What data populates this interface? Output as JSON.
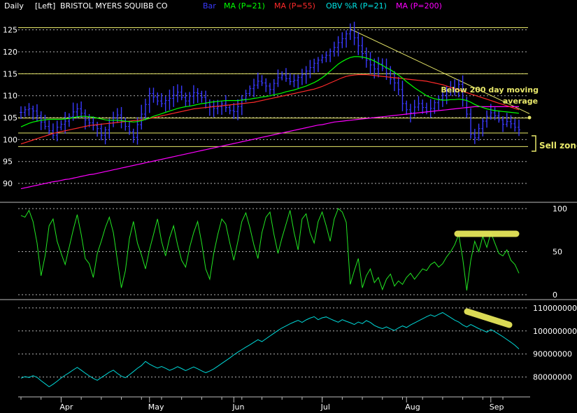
{
  "header": {
    "period": "Daily",
    "scale": "[Left]",
    "company": "BRISTOL MYERS SQUIBB CO",
    "legend": [
      {
        "label": "Bar",
        "color": "#3a3aff"
      },
      {
        "label": "MA (P=21)",
        "color": "#00ff00"
      },
      {
        "label": "MA (P=55)",
        "color": "#ff2a2a"
      },
      {
        "label": "OBV  %R (P=21)",
        "color": "#00e5e5"
      },
      {
        "label": "MA (P=200)",
        "color": "#ff00ff"
      }
    ]
  },
  "annotations": {
    "ma200_note_line1": "Below 200 day moving",
    "ma200_note_line2": "average",
    "sell_zone": "Sell zone"
  },
  "colors": {
    "bars": "#3a3aff",
    "ma21": "#00ff00",
    "ma55": "#ff2a2a",
    "ma200": "#ff00ff",
    "pctr": "#22e622",
    "obv": "#00d8d8",
    "trendline": "#e8e86a",
    "highlight": "#e6e65a",
    "grid": "#ffffff",
    "text": "#ffffff"
  },
  "chart_data": [
    {
      "type": "bar",
      "name": "price",
      "ylim": [
        86.5,
        127.5
      ],
      "y_ticks": [
        90,
        95,
        100,
        105,
        110,
        115,
        120,
        125
      ],
      "x_labels": [
        "Apr",
        "May",
        "Jun",
        "Jul",
        "Aug",
        "Sep"
      ],
      "x_label_index": [
        10,
        32,
        53,
        75,
        96,
        117
      ],
      "n": 125,
      "close": [
        106.2,
        106.8,
        107.0,
        106.5,
        105.4,
        104.0,
        103.0,
        102.0,
        101.0,
        102.8,
        103.5,
        104.2,
        105.2,
        106.3,
        107.0,
        106.0,
        104.5,
        103.8,
        103.2,
        102.5,
        101.0,
        102.2,
        103.8,
        105.0,
        105.6,
        104.2,
        103.0,
        101.8,
        100.5,
        103.4,
        105.8,
        108.0,
        110.5,
        109.7,
        108.8,
        108.2,
        108.9,
        109.4,
        110.1,
        110.8,
        109.6,
        108.8,
        109.9,
        110.7,
        110.5,
        109.6,
        108.4,
        107.6,
        107.1,
        107.5,
        108.1,
        107.3,
        106.6,
        106.4,
        107.5,
        109.2,
        110.5,
        111.6,
        112.4,
        113.3,
        112.9,
        112.2,
        111.4,
        112.8,
        114.1,
        114.7,
        113.9,
        113.2,
        113.5,
        114.2,
        114.8,
        115.6,
        116.4,
        117.4,
        118.1,
        118.7,
        119.2,
        120.1,
        121.0,
        122.1,
        123.0,
        124.1,
        124.8,
        123.2,
        121.4,
        119.6,
        118.1,
        117.0,
        116.1,
        117.2,
        116.3,
        115.1,
        113.8,
        112.9,
        111.4,
        108.2,
        106.8,
        106.1,
        107.4,
        108.2,
        107.3,
        106.4,
        107.1,
        108.4,
        109.2,
        110.1,
        111.2,
        111.8,
        110.9,
        112.6,
        109.0,
        105.8,
        101.2,
        100.4,
        102.5,
        104.2,
        105.3,
        106.1,
        105.4,
        104.5,
        103.5,
        104.1,
        103.6,
        102.8,
        102.2
      ],
      "ma21": [
        102.9,
        103.3,
        103.7,
        104.0,
        104.2,
        104.4,
        104.5,
        104.6,
        104.6,
        104.6,
        104.6,
        104.7,
        104.8,
        105.0,
        105.2,
        105.3,
        105.3,
        105.2,
        105.1,
        104.9,
        104.7,
        104.5,
        104.4,
        104.4,
        104.4,
        104.3,
        104.2,
        104.1,
        104.0,
        104.1,
        104.3,
        104.6,
        104.9,
        105.3,
        105.6,
        105.9,
        106.2,
        106.5,
        106.8,
        107.1,
        107.3,
        107.5,
        107.6,
        107.8,
        108.0,
        108.2,
        108.3,
        108.5,
        108.6,
        108.7,
        108.8,
        108.9,
        108.9,
        108.9,
        108.9,
        109.0,
        109.1,
        109.2,
        109.4,
        109.5,
        109.7,
        109.8,
        110.0,
        110.2,
        110.4,
        110.6,
        110.9,
        111.1,
        111.3,
        111.6,
        111.9,
        112.2,
        112.6,
        113.0,
        113.5,
        114.1,
        114.8,
        115.6,
        116.4,
        117.2,
        117.8,
        118.3,
        118.7,
        118.9,
        118.9,
        118.8,
        118.6,
        118.3,
        117.9,
        117.4,
        116.9,
        116.4,
        115.9,
        115.3,
        114.7,
        114.0,
        113.2,
        112.5,
        111.8,
        111.2,
        110.6,
        110.0,
        109.6,
        109.3,
        109.1,
        109.0,
        109.0,
        109.1,
        109.1,
        109.2,
        109.1,
        108.9,
        108.5,
        108.0,
        107.6,
        107.3,
        107.0,
        106.8,
        106.6,
        106.5,
        106.4,
        106.3,
        106.2,
        106.1,
        106.0
      ],
      "ma55": [
        99.0,
        99.3,
        99.6,
        99.9,
        100.2,
        100.5,
        100.8,
        101.1,
        101.4,
        101.6,
        101.8,
        102.0,
        102.2,
        102.4,
        102.6,
        102.8,
        103.0,
        103.2,
        103.3,
        103.4,
        103.5,
        103.6,
        103.7,
        103.8,
        103.9,
        104.0,
        104.1,
        104.2,
        104.3,
        104.4,
        104.5,
        104.6,
        104.8,
        105.0,
        105.2,
        105.4,
        105.6,
        105.8,
        106.0,
        106.2,
        106.4,
        106.6,
        106.8,
        107.0,
        107.1,
        107.2,
        107.3,
        107.4,
        107.5,
        107.6,
        107.7,
        107.8,
        107.9,
        108.0,
        108.1,
        108.2,
        108.3,
        108.4,
        108.5,
        108.7,
        108.9,
        109.1,
        109.3,
        109.5,
        109.7,
        109.9,
        110.1,
        110.3,
        110.5,
        110.7,
        110.9,
        111.1,
        111.3,
        111.5,
        111.8,
        112.1,
        112.5,
        112.9,
        113.3,
        113.7,
        114.1,
        114.4,
        114.6,
        114.7,
        114.8,
        114.8,
        114.8,
        114.7,
        114.6,
        114.5,
        114.4,
        114.3,
        114.2,
        114.1,
        114.0,
        113.9,
        113.8,
        113.7,
        113.6,
        113.5,
        113.4,
        113.3,
        113.1,
        112.9,
        112.7,
        112.5,
        112.2,
        111.9,
        111.6,
        111.3,
        111.0,
        110.7,
        110.4,
        110.1,
        109.8,
        109.5,
        109.2,
        108.9,
        108.6,
        108.3,
        108.0,
        107.7,
        107.4,
        107.1,
        106.8
      ],
      "ma200": [
        88.8,
        89.0,
        89.2,
        89.4,
        89.6,
        89.8,
        90.0,
        90.2,
        90.4,
        90.5,
        90.7,
        90.9,
        91.0,
        91.2,
        91.4,
        91.6,
        91.8,
        92.0,
        92.1,
        92.3,
        92.5,
        92.7,
        92.9,
        93.1,
        93.3,
        93.5,
        93.7,
        93.9,
        94.1,
        94.3,
        94.5,
        94.7,
        94.9,
        95.1,
        95.3,
        95.5,
        95.7,
        95.9,
        96.1,
        96.3,
        96.5,
        96.7,
        96.9,
        97.1,
        97.3,
        97.5,
        97.7,
        97.9,
        98.1,
        98.3,
        98.5,
        98.7,
        98.9,
        99.1,
        99.3,
        99.5,
        99.7,
        99.9,
        100.1,
        100.3,
        100.5,
        100.7,
        100.9,
        101.1,
        101.3,
        101.5,
        101.7,
        101.9,
        102.1,
        102.3,
        102.5,
        102.7,
        102.9,
        103.1,
        103.3,
        103.4,
        103.6,
        103.8,
        104.0,
        104.1,
        104.2,
        104.3,
        104.4,
        104.5,
        104.6,
        104.7,
        104.8,
        104.9,
        105.0,
        105.1,
        105.2,
        105.3,
        105.4,
        105.5,
        105.6,
        105.7,
        105.8,
        105.9,
        106.0,
        106.1,
        106.2,
        106.3,
        106.4,
        106.5,
        106.6,
        106.7,
        106.8,
        106.9,
        107.0,
        107.1,
        107.2,
        107.3,
        107.4,
        107.5,
        107.5,
        107.5,
        107.5,
        107.5,
        107.5,
        107.5,
        107.5,
        107.5,
        107.5,
        107.5,
        107.5
      ],
      "hlines": [
        125.5,
        115.0,
        104.9,
        101.5,
        98.4
      ],
      "trendline": {
        "from": [
          82,
          125.2
        ],
        "to": [
          124,
          105.9
        ]
      }
    },
    {
      "type": "line",
      "name": "%R (P=21)",
      "ylim": [
        0,
        100
      ],
      "y_ticks": [
        0,
        50,
        100
      ],
      "values": [
        92,
        90,
        98,
        85,
        60,
        22,
        45,
        80,
        88,
        62,
        48,
        35,
        55,
        75,
        93,
        70,
        42,
        36,
        20,
        48,
        62,
        78,
        90,
        72,
        40,
        8,
        28,
        65,
        85,
        60,
        46,
        30,
        52,
        70,
        88,
        62,
        45,
        66,
        80,
        58,
        40,
        32,
        55,
        72,
        85,
        60,
        30,
        18,
        48,
        70,
        88,
        82,
        60,
        40,
        62,
        85,
        95,
        78,
        58,
        42,
        72,
        90,
        96,
        70,
        48,
        66,
        82,
        98,
        72,
        52,
        88,
        94,
        72,
        60,
        85,
        96,
        80,
        62,
        88,
        100,
        96,
        84,
        12,
        28,
        42,
        8,
        22,
        30,
        14,
        20,
        6,
        18,
        24,
        10,
        16,
        12,
        20,
        25,
        18,
        24,
        30,
        28,
        35,
        38,
        32,
        36,
        44,
        50,
        58,
        70,
        42,
        5,
        40,
        62,
        50,
        68,
        55,
        72,
        60,
        48,
        45,
        52,
        40,
        35,
        25
      ]
    },
    {
      "type": "line",
      "name": "OBV",
      "ylim": [
        72000000,
        113000000
      ],
      "y_ticks": [
        80000000,
        90000000,
        100000000,
        110000000
      ],
      "y_tick_labels": [
        "80000000",
        "90000000",
        "100000000",
        "110000000"
      ],
      "values": [
        79.5,
        80.2,
        79.8,
        80.6,
        79.9,
        78.4,
        77.1,
        75.8,
        76.9,
        78.2,
        79.6,
        80.8,
        81.9,
        83.1,
        84.2,
        83.0,
        81.7,
        80.5,
        79.4,
        78.6,
        79.8,
        80.9,
        82.1,
        83.0,
        81.6,
        80.4,
        79.7,
        81.0,
        82.4,
        83.8,
        85.0,
        86.8,
        85.6,
        84.7,
        83.9,
        84.6,
        83.8,
        82.9,
        83.6,
        84.5,
        83.7,
        82.8,
        83.6,
        84.4,
        83.6,
        82.7,
        81.9,
        82.6,
        83.5,
        84.7,
        85.9,
        87.1,
        88.3,
        89.6,
        90.8,
        91.9,
        93.0,
        94.0,
        95.1,
        96.2,
        95.4,
        96.6,
        97.8,
        99.0,
        100.2,
        101.3,
        102.2,
        103.1,
        103.9,
        104.6,
        103.7,
        104.8,
        105.6,
        106.2,
        104.9,
        105.7,
        106.1,
        105.3,
        104.5,
        103.8,
        104.9,
        104.2,
        103.6,
        102.8,
        103.9,
        103.2,
        104.5,
        103.7,
        102.4,
        101.6,
        101.0,
        101.8,
        100.9,
        100.2,
        101.3,
        102.2,
        101.5,
        102.6,
        103.5,
        104.4,
        105.3,
        106.2,
        107.0,
        106.3,
        107.2,
        108.0,
        106.9,
        105.8,
        104.7,
        103.9,
        102.6,
        101.7,
        102.8,
        101.9,
        101.0,
        100.3,
        99.5,
        100.6,
        99.7,
        98.6,
        97.5,
        96.3,
        95.1,
        93.8,
        92.2
      ]
    }
  ]
}
